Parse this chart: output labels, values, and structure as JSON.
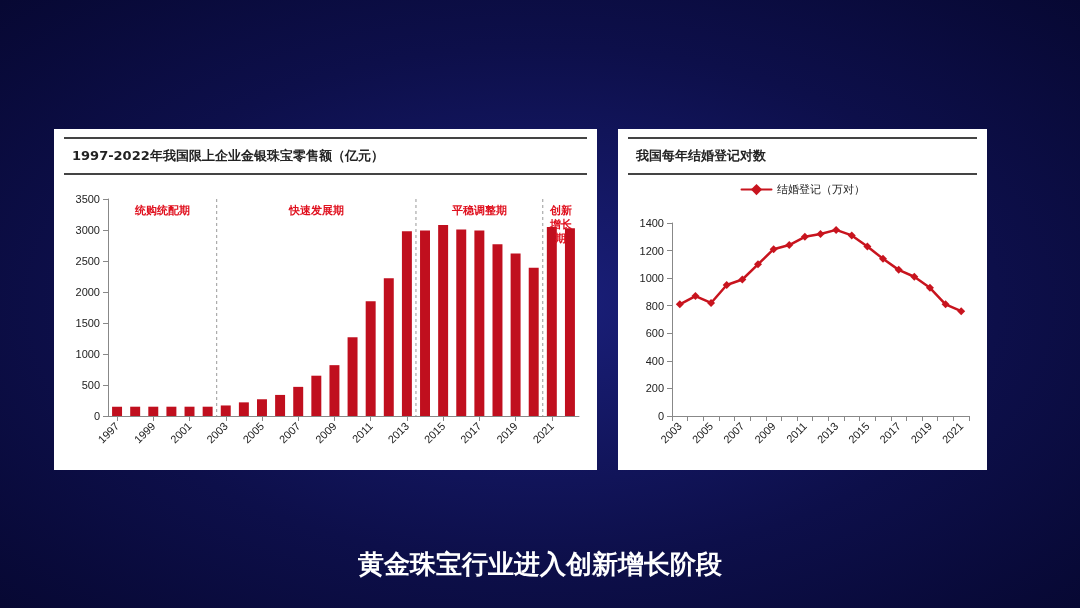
{
  "chart_data": [
    {
      "type": "bar",
      "title": "1997-2022年我国限上企业金银珠宝零售额（亿元）",
      "x": [
        1997,
        1998,
        1999,
        2000,
        2001,
        2002,
        2003,
        2004,
        2005,
        2006,
        2007,
        2008,
        2009,
        2010,
        2011,
        2012,
        2013,
        2014,
        2015,
        2016,
        2017,
        2018,
        2019,
        2020,
        2021,
        2022
      ],
      "values": [
        150,
        150,
        150,
        150,
        150,
        150,
        170,
        220,
        270,
        340,
        470,
        650,
        820,
        1270,
        1850,
        2220,
        2980,
        2990,
        3080,
        3010,
        2990,
        2770,
        2620,
        2390,
        3050,
        3030
      ],
      "color": "#c00f1e",
      "xlim": [
        1996.5,
        2022.5
      ],
      "xticks": [
        1997,
        1999,
        2001,
        2003,
        2005,
        2007,
        2009,
        2011,
        2013,
        2015,
        2017,
        2019,
        2021
      ],
      "ylim": [
        0,
        3500
      ],
      "yticks": [
        0,
        500,
        1000,
        1500,
        2000,
        2500,
        3000,
        3500
      ],
      "grid": false,
      "legend": false,
      "ref_lines": [
        {
          "axis": "x",
          "value": 2002.5,
          "label": null
        },
        {
          "axis": "x",
          "value": 2013.5,
          "label": null
        },
        {
          "axis": "x",
          "value": 2020.5,
          "label": null
        }
      ],
      "annotations": [
        "统购统配期",
        "快速发展期",
        "平稳调整期",
        "创新增长期"
      ]
    },
    {
      "type": "line",
      "title": "我国每年结婚登记对数",
      "categories": [
        "2003",
        null,
        "2005",
        null,
        "2007",
        null,
        "2009",
        null,
        "2011",
        null,
        "2013",
        null,
        "2015",
        null,
        "2017",
        null,
        "2019",
        null,
        "2021"
      ],
      "series": [
        {
          "name": "结婚登记（万对）",
          "color": "#c8141e",
          "values": [
            810,
            870,
            820,
            950,
            990,
            1100,
            1210,
            1240,
            1300,
            1320,
            1350,
            1310,
            1230,
            1140,
            1060,
            1010,
            930,
            810,
            760
          ]
        }
      ],
      "ylim": [
        0,
        1400
      ],
      "yticks": [
        0,
        200,
        400,
        600,
        800,
        1000,
        1200,
        1400
      ],
      "grid": false,
      "legend": "top",
      "marker": "diamond",
      "line_style": "solid",
      "annotations": [
        "黄金珠宝行业进入创新增长阶段"
      ]
    }
  ]
}
